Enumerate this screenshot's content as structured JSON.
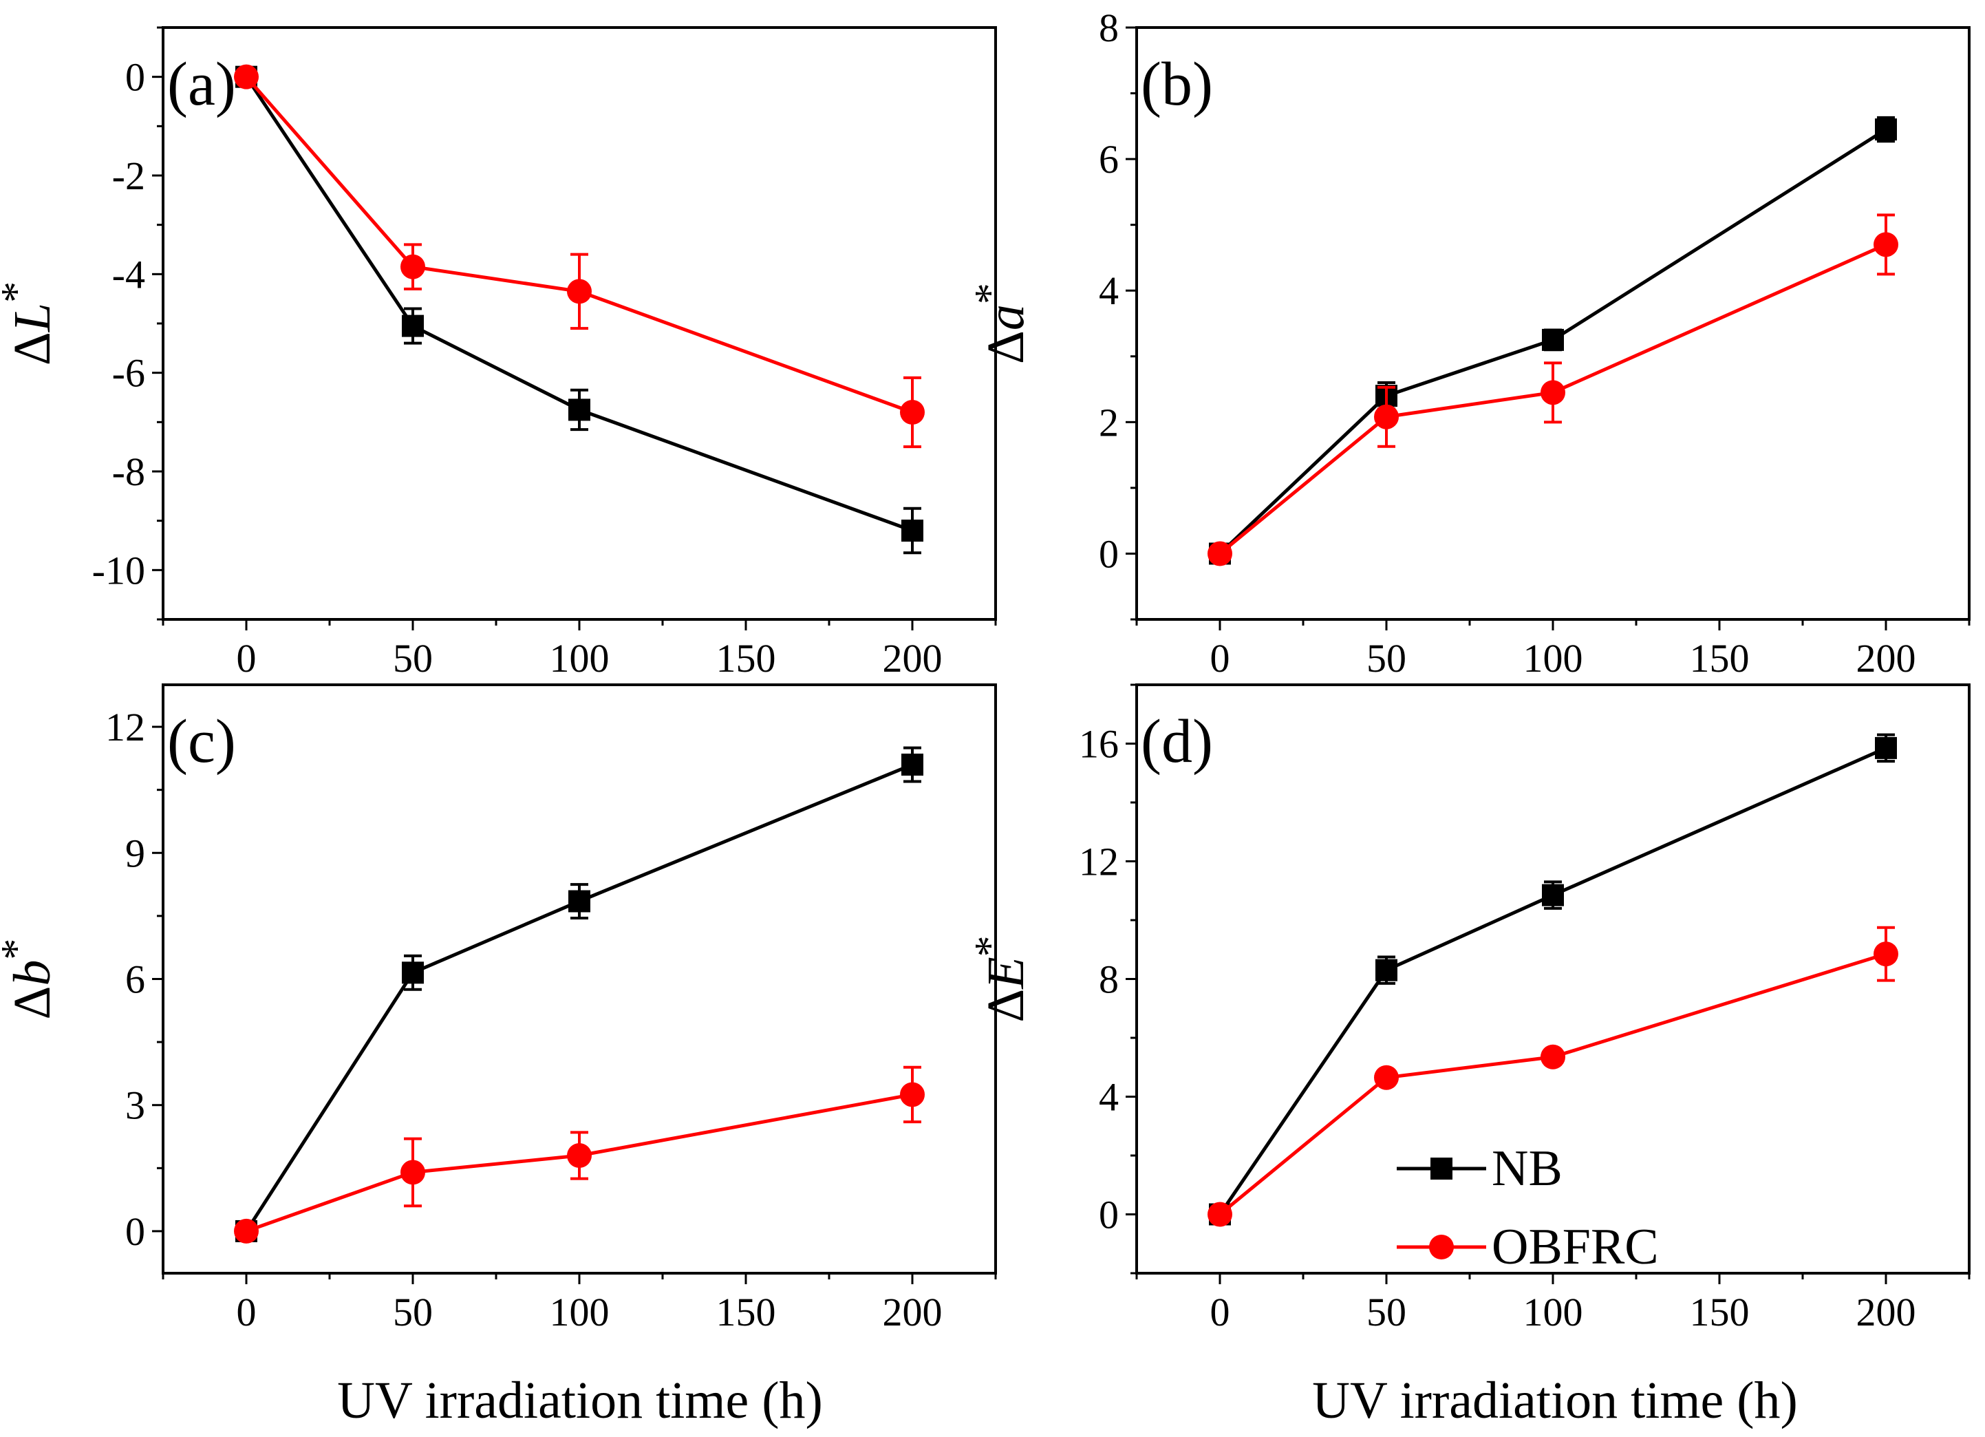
{
  "figure": {
    "xaxis_title": "UV irradiation time (h)",
    "legend": {
      "placement": "lower-right of panel (d)",
      "entries": [
        {
          "label": "NB",
          "color": "#000000",
          "marker": "square"
        },
        {
          "label": "OBFRC",
          "color": "#ff0000",
          "marker": "circle"
        }
      ]
    }
  },
  "chart_data": [
    {
      "id": "a",
      "type": "line",
      "panel_label": "(a)",
      "ylabel_prefix": "Δ",
      "ylabel_var": "L",
      "ylabel_suffix": "*",
      "xlim": [
        -25,
        225
      ],
      "ylim": [
        -11,
        1
      ],
      "xticks": [
        0,
        50,
        100,
        150,
        200
      ],
      "yticks": [
        0,
        -2,
        -4,
        -6,
        -8,
        -10
      ],
      "ytick_labels": [
        "0",
        "-2",
        "-4",
        "-6",
        "-8",
        "-10"
      ],
      "x": [
        0,
        50,
        100,
        200
      ],
      "series": [
        {
          "name": "NB",
          "color": "#000000",
          "marker": "square",
          "values": [
            0,
            -5.05,
            -6.75,
            -9.2
          ],
          "errors": [
            0.1,
            0.35,
            0.4,
            0.45
          ]
        },
        {
          "name": "OBFRC",
          "color": "#ff0000",
          "marker": "circle",
          "values": [
            0,
            -3.85,
            -4.35,
            -6.8
          ],
          "errors": [
            0.1,
            0.45,
            0.75,
            0.7
          ]
        }
      ]
    },
    {
      "id": "b",
      "type": "line",
      "panel_label": "(b)",
      "ylabel_prefix": "Δ",
      "ylabel_var": "a",
      "ylabel_suffix": "*",
      "xlim": [
        -25,
        225
      ],
      "ylim": [
        -1,
        8
      ],
      "xticks": [
        0,
        50,
        100,
        150,
        200
      ],
      "yticks": [
        0,
        2,
        4,
        6,
        8
      ],
      "ytick_labels": [
        "0",
        "2",
        "4",
        "6",
        "8"
      ],
      "x": [
        0,
        50,
        100,
        200
      ],
      "series": [
        {
          "name": "NB",
          "color": "#000000",
          "marker": "square",
          "values": [
            0,
            2.4,
            3.25,
            6.45
          ],
          "errors": [
            0.05,
            0.2,
            0.15,
            0.18
          ]
        },
        {
          "name": "OBFRC",
          "color": "#ff0000",
          "marker": "circle",
          "values": [
            0,
            2.08,
            2.45,
            4.7
          ],
          "errors": [
            0.05,
            0.45,
            0.45,
            0.45
          ]
        }
      ]
    },
    {
      "id": "c",
      "type": "line",
      "panel_label": "(c)",
      "ylabel_prefix": "Δ",
      "ylabel_var": "b",
      "ylabel_suffix": "*",
      "xlim": [
        -25,
        225
      ],
      "ylim": [
        -1,
        13
      ],
      "xticks": [
        0,
        50,
        100,
        150,
        200
      ],
      "yticks": [
        0,
        3,
        6,
        9,
        12
      ],
      "ytick_labels": [
        "0",
        "3",
        "6",
        "9",
        "12"
      ],
      "x": [
        0,
        50,
        100,
        200
      ],
      "series": [
        {
          "name": "NB",
          "color": "#000000",
          "marker": "square",
          "values": [
            0,
            6.15,
            7.85,
            11.1
          ],
          "errors": [
            0.1,
            0.4,
            0.4,
            0.4
          ]
        },
        {
          "name": "OBFRC",
          "color": "#ff0000",
          "marker": "circle",
          "values": [
            0,
            1.4,
            1.8,
            3.25
          ],
          "errors": [
            0.1,
            0.8,
            0.55,
            0.65
          ]
        }
      ]
    },
    {
      "id": "d",
      "type": "line",
      "panel_label": "(d)",
      "ylabel_prefix": "Δ",
      "ylabel_var": "E",
      "ylabel_suffix": "*",
      "xlim": [
        -25,
        225
      ],
      "ylim": [
        -2,
        18
      ],
      "xticks": [
        0,
        50,
        100,
        150,
        200
      ],
      "yticks": [
        0,
        4,
        8,
        12,
        16
      ],
      "ytick_labels": [
        "0",
        "4",
        "8",
        "12",
        "16"
      ],
      "x": [
        0,
        50,
        100,
        200
      ],
      "series": [
        {
          "name": "NB",
          "color": "#000000",
          "marker": "square",
          "values": [
            0,
            8.3,
            10.85,
            15.85
          ],
          "errors": [
            0.1,
            0.45,
            0.45,
            0.45
          ]
        },
        {
          "name": "OBFRC",
          "color": "#ff0000",
          "marker": "circle",
          "values": [
            0,
            4.65,
            5.35,
            8.85
          ],
          "errors": [
            0.1,
            0.2,
            0.2,
            0.9
          ]
        }
      ]
    }
  ]
}
